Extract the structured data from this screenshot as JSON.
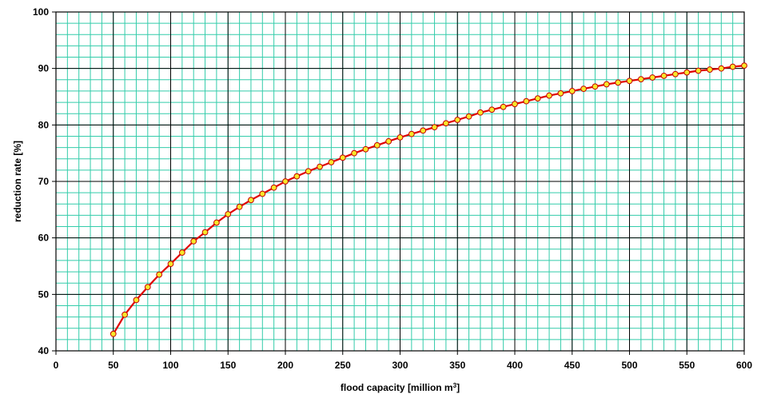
{
  "chart_data": {
    "type": "line",
    "title": "",
    "xlabel": "flood capacity [million m",
    "xlabel_sup": "3",
    "xlabel_end": "]",
    "ylabel": "reduction rate [%]",
    "xlim": [
      0,
      600
    ],
    "ylim": [
      40,
      100
    ],
    "x_major_step": 50,
    "y_major_step": 10,
    "x_minor_step": 10,
    "y_minor_step": 2,
    "grid": true,
    "legend": "none",
    "x_ticks": [
      "0",
      "50",
      "100",
      "150",
      "200",
      "250",
      "300",
      "350",
      "400",
      "450",
      "500",
      "550",
      "600"
    ],
    "y_ticks": [
      "40",
      "50",
      "60",
      "70",
      "80",
      "90",
      "100"
    ],
    "colors": {
      "background": "#ffffff",
      "plot_area": "#ffffff",
      "minor_grid": "#33ccaa",
      "major_grid": "#000000",
      "line": "#e00000",
      "marker_fill": "#f6e62a",
      "marker_edge": "#c80000"
    },
    "series": [
      {
        "x": [
          50,
          60,
          70,
          80,
          90,
          100,
          110,
          120,
          130,
          140,
          150,
          160,
          170,
          180,
          190,
          200,
          210,
          220,
          230,
          240,
          250,
          260,
          270,
          280,
          290,
          300,
          310,
          320,
          330,
          340,
          350,
          360,
          370,
          380,
          390,
          400,
          410,
          420,
          430,
          440,
          450,
          460,
          470,
          480,
          490,
          500,
          510,
          520,
          530,
          540,
          550,
          560,
          570,
          580,
          590,
          600
        ],
        "y": [
          43.0,
          46.4,
          49.0,
          51.3,
          53.5,
          55.4,
          57.4,
          59.4,
          61.0,
          62.7,
          64.2,
          65.5,
          66.7,
          67.8,
          68.9,
          70.0,
          70.9,
          71.8,
          72.6,
          73.4,
          74.2,
          75.0,
          75.7,
          76.4,
          77.1,
          77.8,
          78.4,
          79.0,
          79.6,
          80.3,
          80.9,
          81.5,
          82.2,
          82.7,
          83.2,
          83.7,
          84.2,
          84.7,
          85.2,
          85.6,
          86.0,
          86.4,
          86.8,
          87.2,
          87.5,
          87.8,
          88.1,
          88.4,
          88.7,
          89.0,
          89.3,
          89.6,
          89.8,
          90.0,
          90.3,
          90.5
        ]
      }
    ]
  }
}
